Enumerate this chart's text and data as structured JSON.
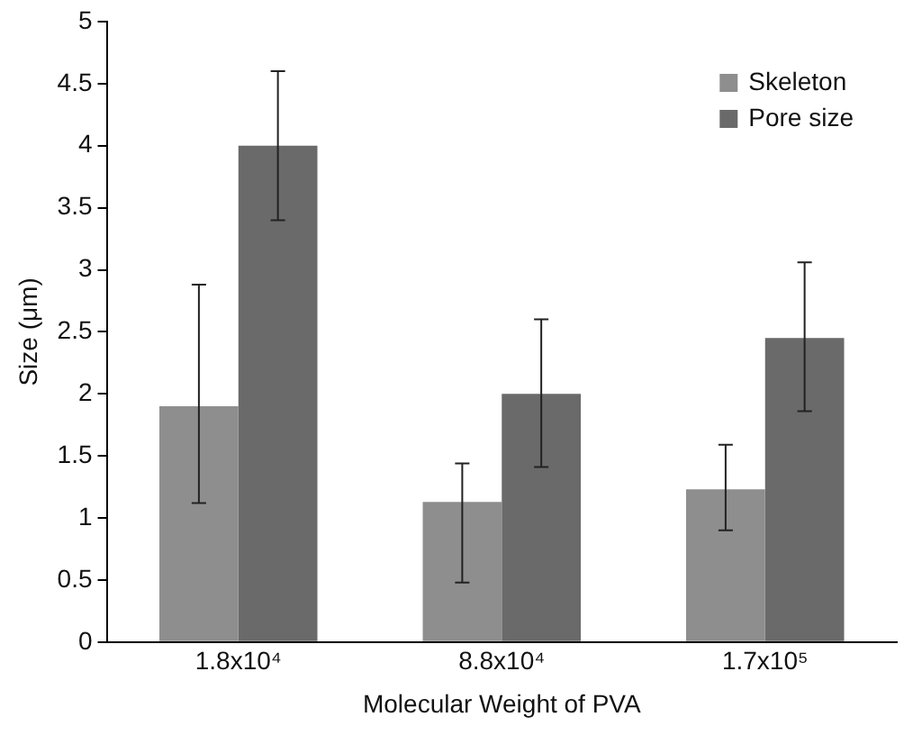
{
  "chart_data": {
    "type": "bar",
    "xlabel": "Molecular Weight of PVA",
    "ylabel": "Size (μm)",
    "categories": [
      "1.8x10⁴",
      "8.8x10⁴",
      "1.7x10⁵"
    ],
    "series": [
      {
        "name": "Skeleton",
        "color": "#8e8e8e",
        "values": [
          1.9,
          1.13,
          1.23
        ],
        "errors": [
          [
            1.12,
            2.88
          ],
          [
            0.48,
            1.44
          ],
          [
            0.9,
            1.59
          ]
        ]
      },
      {
        "name": "Pore size",
        "color": "#6a6a6a",
        "values": [
          4.0,
          2.0,
          2.45
        ],
        "errors": [
          [
            3.4,
            4.6
          ],
          [
            1.41,
            2.6
          ],
          [
            1.86,
            3.06
          ]
        ]
      }
    ],
    "ylim": [
      0,
      5
    ],
    "yticks": [
      0,
      0.5,
      1,
      1.5,
      2,
      2.5,
      3,
      3.5,
      4,
      4.5,
      5
    ],
    "grid": false,
    "legend": "top right"
  }
}
